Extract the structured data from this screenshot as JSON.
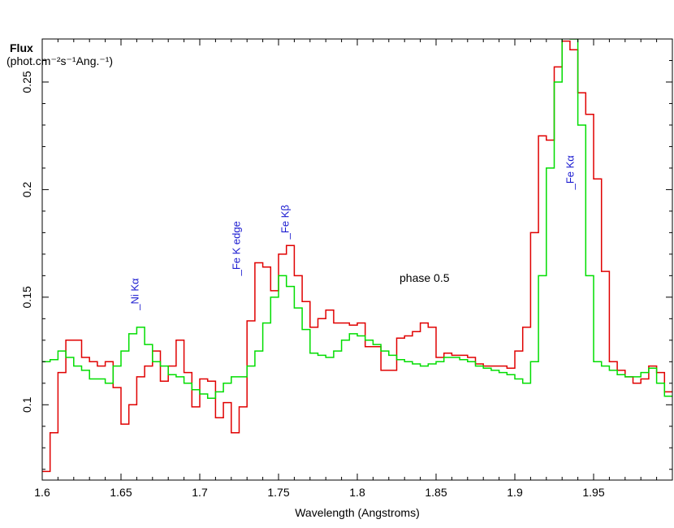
{
  "chart_data": {
    "type": "line",
    "ylabel_line1": "Flux",
    "ylabel_line2": "(phot.cm⁻²s⁻¹Ang.⁻¹)",
    "xlabel": "Wavelength (Angstroms)",
    "annotation": "phase 0.5",
    "xlim": [
      1.6,
      2.0
    ],
    "ylim": [
      0.065,
      0.27
    ],
    "x_ticks": [
      1.6,
      1.65,
      1.7,
      1.75,
      1.8,
      1.85,
      1.9,
      1.95
    ],
    "x_tick_labels": [
      "1.6",
      "1.65",
      "1.7",
      "1.75",
      "1.8",
      "1.85",
      "1.9",
      "1.95"
    ],
    "y_ticks": [
      0.1,
      0.15,
      0.2,
      0.25
    ],
    "y_tick_labels": [
      "0.1",
      "0.15",
      "0.2",
      "0.25"
    ],
    "line_labels": [
      {
        "text": "_Ni Kα",
        "x": 1.661,
        "y": 0.144
      },
      {
        "text": "_Fe K edge",
        "x": 1.7255,
        "y": 0.16
      },
      {
        "text": "_Fe Kβ",
        "x": 1.7565,
        "y": 0.177
      },
      {
        "text": "_Fe Kα",
        "x": 1.9375,
        "y": 0.2
      }
    ],
    "series": [
      {
        "color": "#e00000",
        "style": "step",
        "x": [
          1.6,
          1.605,
          1.61,
          1.615,
          1.62,
          1.625,
          1.63,
          1.635,
          1.64,
          1.645,
          1.65,
          1.655,
          1.66,
          1.665,
          1.67,
          1.675,
          1.68,
          1.685,
          1.69,
          1.695,
          1.7,
          1.705,
          1.71,
          1.715,
          1.72,
          1.725,
          1.73,
          1.735,
          1.74,
          1.745,
          1.75,
          1.755,
          1.76,
          1.765,
          1.77,
          1.775,
          1.78,
          1.785,
          1.79,
          1.795,
          1.8,
          1.805,
          1.81,
          1.815,
          1.82,
          1.825,
          1.83,
          1.835,
          1.84,
          1.845,
          1.85,
          1.855,
          1.86,
          1.865,
          1.87,
          1.875,
          1.88,
          1.885,
          1.89,
          1.895,
          1.9,
          1.905,
          1.91,
          1.915,
          1.92,
          1.925,
          1.93,
          1.935,
          1.94,
          1.945,
          1.95,
          1.955,
          1.96,
          1.965,
          1.97,
          1.975,
          1.98,
          1.985,
          1.99,
          1.995
        ],
        "y": [
          0.069,
          0.087,
          0.115,
          0.13,
          0.13,
          0.122,
          0.12,
          0.118,
          0.12,
          0.108,
          0.091,
          0.1,
          0.113,
          0.118,
          0.125,
          0.111,
          0.118,
          0.13,
          0.115,
          0.099,
          0.112,
          0.111,
          0.094,
          0.101,
          0.087,
          0.099,
          0.139,
          0.166,
          0.164,
          0.153,
          0.17,
          0.174,
          0.16,
          0.148,
          0.136,
          0.14,
          0.144,
          0.138,
          0.138,
          0.137,
          0.138,
          0.127,
          0.127,
          0.116,
          0.116,
          0.131,
          0.132,
          0.134,
          0.138,
          0.136,
          0.122,
          0.124,
          0.123,
          0.123,
          0.122,
          0.119,
          0.118,
          0.118,
          0.118,
          0.117,
          0.125,
          0.136,
          0.18,
          0.225,
          0.223,
          0.257,
          0.269,
          0.265,
          0.245,
          0.235,
          0.205,
          0.162,
          0.12,
          0.116,
          0.113,
          0.11,
          0.112,
          0.118,
          0.115,
          0.106
        ]
      },
      {
        "color": "#00dd00",
        "style": "step",
        "x": [
          1.6,
          1.605,
          1.61,
          1.615,
          1.62,
          1.625,
          1.63,
          1.635,
          1.64,
          1.645,
          1.65,
          1.655,
          1.66,
          1.665,
          1.67,
          1.675,
          1.68,
          1.685,
          1.69,
          1.695,
          1.7,
          1.705,
          1.71,
          1.715,
          1.72,
          1.725,
          1.73,
          1.735,
          1.74,
          1.745,
          1.75,
          1.755,
          1.76,
          1.765,
          1.77,
          1.775,
          1.78,
          1.785,
          1.79,
          1.795,
          1.8,
          1.805,
          1.81,
          1.815,
          1.82,
          1.825,
          1.83,
          1.835,
          1.84,
          1.845,
          1.85,
          1.855,
          1.86,
          1.865,
          1.87,
          1.875,
          1.88,
          1.885,
          1.89,
          1.895,
          1.9,
          1.905,
          1.91,
          1.915,
          1.92,
          1.925,
          1.93,
          1.935,
          1.94,
          1.945,
          1.95,
          1.955,
          1.96,
          1.965,
          1.97,
          1.975,
          1.98,
          1.985,
          1.99,
          1.995
        ],
        "y": [
          0.12,
          0.121,
          0.125,
          0.122,
          0.118,
          0.116,
          0.112,
          0.112,
          0.11,
          0.118,
          0.125,
          0.133,
          0.136,
          0.128,
          0.12,
          0.118,
          0.114,
          0.113,
          0.11,
          0.107,
          0.105,
          0.103,
          0.106,
          0.11,
          0.113,
          0.113,
          0.118,
          0.125,
          0.138,
          0.15,
          0.16,
          0.155,
          0.145,
          0.135,
          0.124,
          0.123,
          0.122,
          0.125,
          0.13,
          0.133,
          0.132,
          0.13,
          0.128,
          0.125,
          0.123,
          0.121,
          0.12,
          0.119,
          0.118,
          0.119,
          0.12,
          0.122,
          0.122,
          0.121,
          0.12,
          0.118,
          0.117,
          0.116,
          0.115,
          0.114,
          0.112,
          0.11,
          0.12,
          0.16,
          0.21,
          0.25,
          0.28,
          0.27,
          0.23,
          0.16,
          0.12,
          0.118,
          0.116,
          0.114,
          0.113,
          0.113,
          0.115,
          0.117,
          0.11,
          0.104
        ]
      }
    ]
  }
}
